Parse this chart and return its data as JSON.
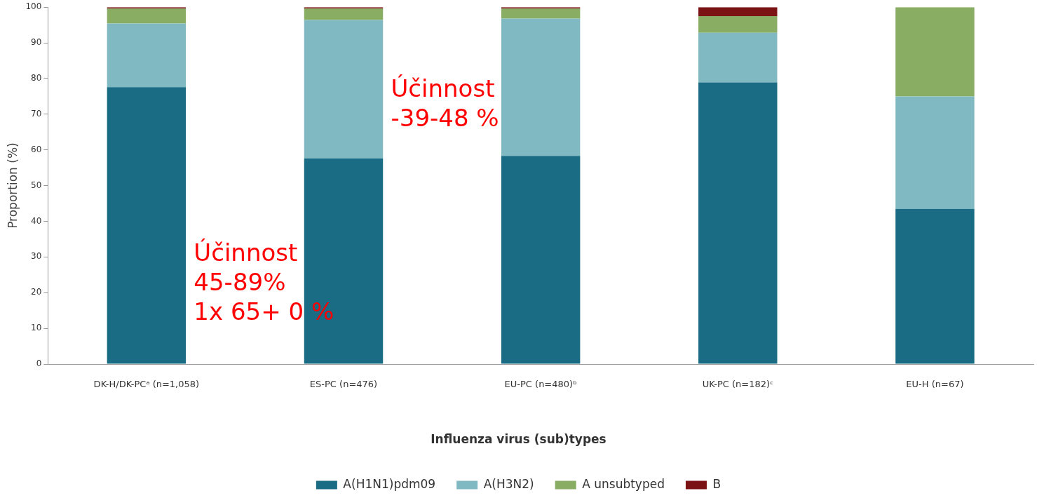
{
  "chart_data": {
    "type": "bar",
    "stacked": true,
    "ylabel": "Proportion (%)",
    "legend_title": "Influenza virus (sub)types",
    "legend": "bottom",
    "grid": false,
    "categories": [
      "DK-H/DK-PCᵃ (n=1,058)",
      "ES-PC (n=476)",
      "EU-PC (n=480)ᵇ",
      "UK-PC (n=182)ᶜ",
      "EU-H (n=67)"
    ],
    "ylim": [
      0,
      100
    ],
    "yticks": [
      0,
      10,
      20,
      30,
      40,
      50,
      60,
      70,
      80,
      90,
      100
    ],
    "series": [
      {
        "name": "A(H1N1)pdm09",
        "color": "#1a6b84",
        "values": [
          77.6,
          57.6,
          58.3,
          78.9,
          43.5
        ]
      },
      {
        "name": "A(H3N2)",
        "color": "#80b9c1",
        "values": [
          17.8,
          38.8,
          38.5,
          13.9,
          31.5
        ]
      },
      {
        "name": "A unsubtyped",
        "color": "#88ad63",
        "values": [
          4.2,
          3.2,
          2.8,
          4.7,
          25
        ]
      },
      {
        "name": "B",
        "color": "#7b1315",
        "values": [
          0.4,
          0.4,
          0.4,
          2.5,
          0
        ]
      }
    ],
    "annotations": [
      "Účinnost\n45-89%\n1x 65+ 0 %",
      "Účinnost\n-39-48 %"
    ]
  }
}
